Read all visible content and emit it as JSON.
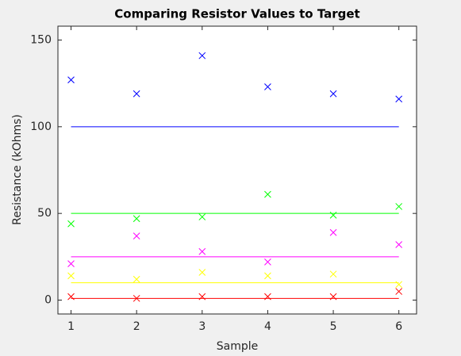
{
  "chart_data": {
    "type": "scatter",
    "title": "Comparing Resistor Values to Target",
    "xlabel": "Sample",
    "ylabel": "Resistance (kOhms)",
    "x": [
      1,
      2,
      3,
      4,
      5,
      6
    ],
    "xlim": [
      0.8,
      6.27
    ],
    "xticks": [
      1,
      2,
      3,
      4,
      5,
      6
    ],
    "ylim": [
      -8,
      158
    ],
    "yticks": [
      0,
      50,
      100,
      150
    ],
    "grid": false,
    "marker": "x",
    "series": [
      {
        "color": "#0000ff",
        "target": 100,
        "values": [
          127,
          119,
          141,
          123,
          119,
          116
        ]
      },
      {
        "color": "#00ff00",
        "target": 50,
        "values": [
          44,
          47,
          48,
          61,
          49,
          54
        ]
      },
      {
        "color": "#ff00ff",
        "target": 25,
        "values": [
          21,
          37,
          28,
          22,
          39,
          32
        ]
      },
      {
        "color": "#ffff00",
        "target": 10,
        "values": [
          14,
          12,
          16,
          14,
          15,
          9
        ]
      },
      {
        "color": "#ff0000",
        "target": 1,
        "values": [
          2,
          1,
          2,
          2,
          2,
          5
        ]
      }
    ]
  }
}
